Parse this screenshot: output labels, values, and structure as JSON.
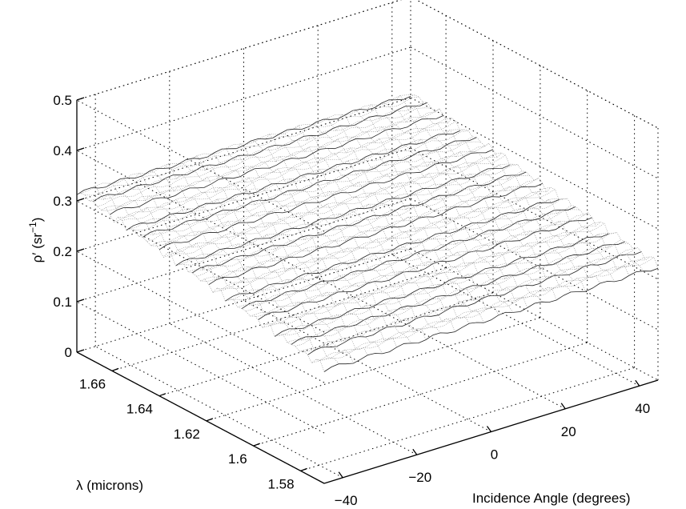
{
  "chart_data": {
    "type": "surface",
    "title": "",
    "axes": {
      "x": {
        "label": "Incidence Angle (degrees)",
        "ticks": [
          -40,
          -20,
          0,
          20,
          40
        ],
        "tick_labels": [
          "−40",
          "−20",
          "0",
          "20",
          "40"
        ],
        "range": [
          -45,
          45
        ]
      },
      "y": {
        "label": "λ (microns)",
        "ticks": [
          1.58,
          1.6,
          1.62,
          1.64,
          1.66
        ],
        "tick_labels": [
          "1.58",
          "1.6",
          "1.62",
          "1.64",
          "1.66"
        ],
        "range": [
          1.57,
          1.675
        ]
      },
      "z": {
        "label_main": "ρ′ (sr",
        "label_sup": "−1",
        "label_end": ")",
        "ticks": [
          0,
          0.1,
          0.2,
          0.3,
          0.4,
          0.5
        ],
        "tick_labels": [
          "0",
          "0.1",
          "0.2",
          "0.3",
          "0.4",
          "0.5"
        ],
        "range": [
          0,
          0.5
        ]
      }
    },
    "grid": true,
    "surface": {
      "angle_range": [
        -45,
        45
      ],
      "wavelength_range": [
        1.57,
        1.675
      ],
      "value_description": "reflectance ≈ 0.23 at 1.58 µm rising to ≈ 0.32 at 1.675 µm, nearly independent of angle, with fine ripple",
      "corner_values": {
        "angle_-45_wl_1.57": 0.23,
        "angle_45_wl_1.57": 0.23,
        "angle_-45_wl_1.675": 0.32,
        "angle_45_wl_1.675": 0.31
      }
    }
  }
}
